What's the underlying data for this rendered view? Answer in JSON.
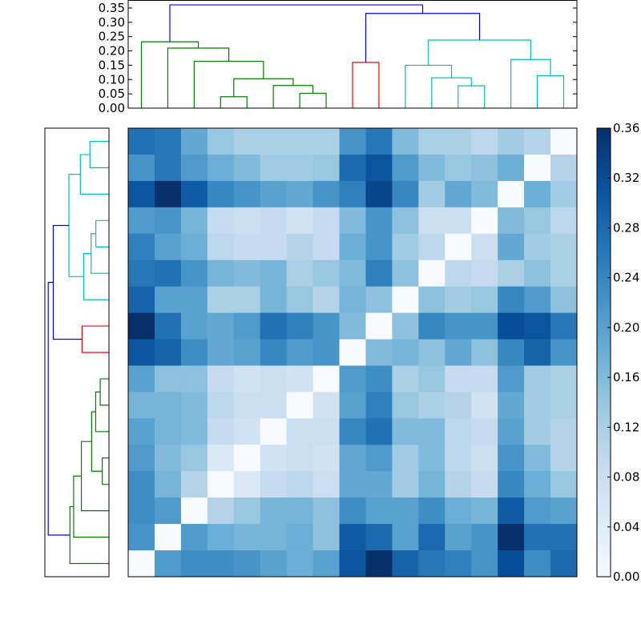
{
  "chart_data": {
    "type": "heatmap",
    "title": "",
    "n": 17,
    "colormap": "Blues",
    "colormap_stops": [
      "#f7fbff",
      "#deebf7",
      "#c6dbef",
      "#9ecae1",
      "#6baed6",
      "#4292c6",
      "#2171b5",
      "#08519c",
      "#08306b"
    ],
    "vmin": 0.0,
    "vmax": 0.36,
    "colorbar": {
      "ticks": [
        0.0,
        0.04,
        0.08,
        0.12,
        0.16,
        0.2,
        0.24,
        0.28,
        0.32,
        0.36
      ],
      "tick_labels": [
        "0.00",
        "0.04",
        "0.08",
        "0.12",
        "0.16",
        "0.20",
        "0.24",
        "0.28",
        "0.32",
        "0.36"
      ],
      "placement": "right"
    },
    "matrix": [
      [
        0.27,
        0.26,
        0.19,
        0.14,
        0.12,
        0.12,
        0.12,
        0.12,
        0.22,
        0.26,
        0.16,
        0.12,
        0.12,
        0.1,
        0.13,
        0.11,
        0.0
      ],
      [
        0.22,
        0.26,
        0.21,
        0.18,
        0.16,
        0.13,
        0.13,
        0.14,
        0.28,
        0.31,
        0.21,
        0.16,
        0.14,
        0.15,
        0.18,
        0.0,
        0.11
      ],
      [
        0.31,
        0.36,
        0.3,
        0.24,
        0.22,
        0.2,
        0.19,
        0.22,
        0.25,
        0.33,
        0.24,
        0.13,
        0.19,
        0.16,
        0.0,
        0.18,
        0.13
      ],
      [
        0.21,
        0.22,
        0.17,
        0.09,
        0.08,
        0.09,
        0.07,
        0.09,
        0.16,
        0.22,
        0.15,
        0.08,
        0.08,
        0.0,
        0.16,
        0.14,
        0.1
      ],
      [
        0.25,
        0.2,
        0.18,
        0.1,
        0.09,
        0.09,
        0.11,
        0.09,
        0.18,
        0.22,
        0.13,
        0.1,
        0.0,
        0.08,
        0.19,
        0.13,
        0.12
      ],
      [
        0.26,
        0.27,
        0.22,
        0.17,
        0.16,
        0.17,
        0.12,
        0.14,
        0.16,
        0.25,
        0.15,
        0.0,
        0.1,
        0.09,
        0.12,
        0.15,
        0.12
      ],
      [
        0.29,
        0.2,
        0.2,
        0.12,
        0.12,
        0.17,
        0.14,
        0.11,
        0.17,
        0.15,
        0.0,
        0.15,
        0.13,
        0.14,
        0.24,
        0.21,
        0.15
      ],
      [
        0.36,
        0.27,
        0.2,
        0.19,
        0.21,
        0.27,
        0.25,
        0.22,
        0.16,
        0.0,
        0.15,
        0.24,
        0.22,
        0.22,
        0.32,
        0.31,
        0.26
      ],
      [
        0.31,
        0.29,
        0.23,
        0.19,
        0.2,
        0.24,
        0.21,
        0.22,
        0.0,
        0.16,
        0.17,
        0.15,
        0.19,
        0.15,
        0.24,
        0.29,
        0.22
      ],
      [
        0.2,
        0.15,
        0.15,
        0.09,
        0.07,
        0.08,
        0.07,
        0.0,
        0.21,
        0.23,
        0.12,
        0.14,
        0.09,
        0.09,
        0.21,
        0.13,
        0.12
      ],
      [
        0.17,
        0.17,
        0.16,
        0.1,
        0.08,
        0.08,
        0.0,
        0.07,
        0.2,
        0.25,
        0.14,
        0.12,
        0.11,
        0.07,
        0.19,
        0.13,
        0.12
      ],
      [
        0.2,
        0.17,
        0.16,
        0.09,
        0.07,
        0.0,
        0.08,
        0.08,
        0.24,
        0.27,
        0.16,
        0.16,
        0.1,
        0.09,
        0.2,
        0.13,
        0.11
      ],
      [
        0.21,
        0.16,
        0.14,
        0.05,
        0.0,
        0.07,
        0.08,
        0.07,
        0.19,
        0.21,
        0.13,
        0.16,
        0.1,
        0.08,
        0.22,
        0.16,
        0.11
      ],
      [
        0.23,
        0.17,
        0.11,
        0.0,
        0.05,
        0.09,
        0.1,
        0.08,
        0.19,
        0.19,
        0.13,
        0.17,
        0.11,
        0.09,
        0.24,
        0.18,
        0.14
      ],
      [
        0.23,
        0.21,
        0.0,
        0.11,
        0.14,
        0.17,
        0.17,
        0.15,
        0.23,
        0.2,
        0.2,
        0.23,
        0.18,
        0.17,
        0.3,
        0.21,
        0.2
      ],
      [
        0.22,
        0.0,
        0.21,
        0.18,
        0.17,
        0.17,
        0.18,
        0.15,
        0.3,
        0.28,
        0.2,
        0.28,
        0.2,
        0.22,
        0.36,
        0.27,
        0.27
      ],
      [
        0.0,
        0.21,
        0.23,
        0.23,
        0.22,
        0.2,
        0.18,
        0.2,
        0.31,
        0.36,
        0.29,
        0.26,
        0.25,
        0.22,
        0.32,
        0.23,
        0.28
      ]
    ],
    "dendrogram": {
      "ylim": [
        0,
        0.378
      ],
      "yticks": [
        0.0,
        0.05,
        0.1,
        0.15,
        0.2,
        0.25,
        0.3,
        0.35
      ],
      "ytick_labels": [
        "0.00",
        "0.05",
        "0.10",
        "0.15",
        "0.20",
        "0.25",
        "0.30",
        "0.35"
      ],
      "leaf_count": 17,
      "colors": {
        "green": "#008000",
        "red": "#ff0000",
        "cyan": "#00bfbf",
        "blue": "#0000ff"
      },
      "links": [
        {
          "xl": 35,
          "xr": 45,
          "h": 0.04,
          "hl": 0,
          "hr": 0,
          "color": "green"
        },
        {
          "xl": 65,
          "xr": 75,
          "h": 0.052,
          "hl": 0,
          "hr": 0,
          "color": "green"
        },
        {
          "xl": 55,
          "xr": 70,
          "h": 0.079,
          "hl": 0,
          "hr": 0.052,
          "color": "green"
        },
        {
          "xl": 40,
          "xr": 62.5,
          "h": 0.103,
          "hl": 0.04,
          "hr": 0.079,
          "color": "green"
        },
        {
          "xl": 25,
          "xr": 51.25,
          "h": 0.164,
          "hl": 0,
          "hr": 0.103,
          "color": "green"
        },
        {
          "xl": 15,
          "xr": 38.125,
          "h": 0.21,
          "hl": 0,
          "hr": 0.164,
          "color": "green"
        },
        {
          "xl": 5,
          "xr": 26.5625,
          "h": 0.232,
          "hl": 0,
          "hr": 0.21,
          "color": "green"
        },
        {
          "xl": 85,
          "xr": 95,
          "h": 0.16,
          "hl": 0,
          "hr": 0,
          "color": "red"
        },
        {
          "xl": 125,
          "xr": 135,
          "h": 0.078,
          "hl": 0,
          "hr": 0,
          "color": "cyan"
        },
        {
          "xl": 115,
          "xr": 130,
          "h": 0.106,
          "hl": 0,
          "hr": 0.078,
          "color": "cyan"
        },
        {
          "xl": 105,
          "xr": 122.5,
          "h": 0.15,
          "hl": 0,
          "hr": 0.106,
          "color": "cyan"
        },
        {
          "xl": 155,
          "xr": 165,
          "h": 0.113,
          "hl": 0,
          "hr": 0,
          "color": "cyan"
        },
        {
          "xl": 145,
          "xr": 160,
          "h": 0.17,
          "hl": 0,
          "hr": 0.113,
          "color": "cyan"
        },
        {
          "xl": 113.75,
          "xr": 152.5,
          "h": 0.238,
          "hl": 0.15,
          "hr": 0.17,
          "color": "cyan"
        },
        {
          "xl": 90,
          "xr": 133.125,
          "h": 0.331,
          "hl": 0.16,
          "hr": 0.238,
          "color": "blue"
        },
        {
          "xl": 15.78,
          "xr": 111.56,
          "h": 0.361,
          "hl": 0.232,
          "hr": 0.331,
          "color": "blue"
        }
      ]
    }
  }
}
